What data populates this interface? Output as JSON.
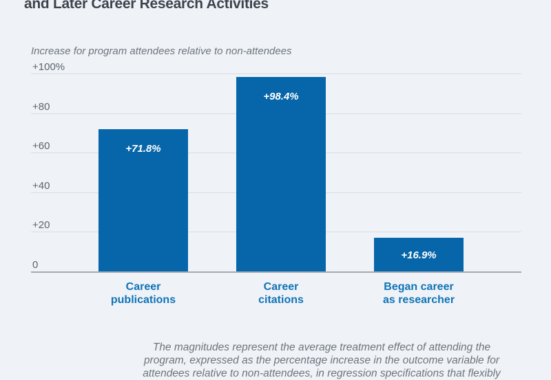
{
  "header": {
    "title_visible_line": "and Later Career Research Activities"
  },
  "chart_data": {
    "type": "bar",
    "title": "and Later Career Research Activities",
    "subtitle": "Increase for program attendees relative to non-attendees",
    "categories": [
      "Career publications",
      "Career citations",
      "Began career as researcher"
    ],
    "category_lines": [
      [
        "Career",
        "publications"
      ],
      [
        "Career",
        "citations"
      ],
      [
        "Began career",
        "as researcher"
      ]
    ],
    "values": [
      71.8,
      98.4,
      16.9
    ],
    "bar_labels": [
      "+71.8%",
      "+98.4%",
      "+16.9%"
    ],
    "y_ticks": [
      {
        "value": 100,
        "label": "+100%"
      },
      {
        "value": 80,
        "label": "+80"
      },
      {
        "value": 60,
        "label": "+60"
      },
      {
        "value": 40,
        "label": "+40"
      },
      {
        "value": 20,
        "label": "+20"
      },
      {
        "value": 0,
        "label": "0"
      }
    ],
    "ylim": [
      0,
      100
    ],
    "xlabel": "",
    "ylabel": "",
    "grid": true,
    "legend": "none",
    "colors": {
      "bar": "#0765a9",
      "bar_label_text": "#ffffff",
      "category_label": "#1173b5",
      "title_text": "#3e444c",
      "muted_text": "#6e747c",
      "tick_text": "#5d646c",
      "gridline": "#d9dde4",
      "baseline": "#a3a9b2",
      "background": "#eff3f8"
    }
  },
  "footnote": {
    "lines": [
      "The magnitudes represent the average treatment effect of attending the",
      "program, expressed as the percentage increase in the outcome variable for",
      "attendees relative to non-attendees, in regression specifications that flexibly"
    ]
  }
}
